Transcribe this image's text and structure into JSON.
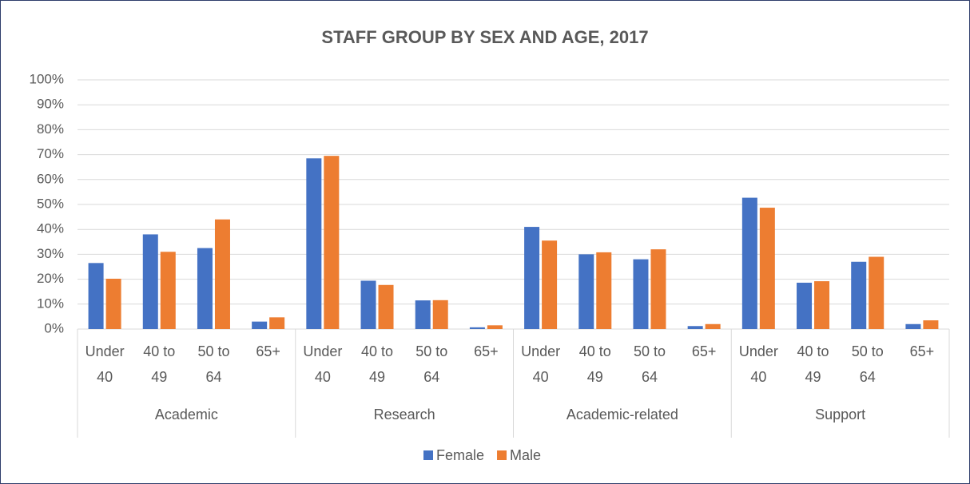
{
  "chart_data": {
    "type": "bar",
    "title": "STAFF GROUP BY SEX AND AGE, 2017",
    "groups": [
      {
        "name": "Academic",
        "categories": [
          "Under 40",
          "40 to 49",
          "50 to 64",
          "65+"
        ]
      },
      {
        "name": "Research",
        "categories": [
          "Under 40",
          "40 to 49",
          "50 to 64",
          "65+"
        ]
      },
      {
        "name": "Academic-related",
        "categories": [
          "Under 40",
          "40 to 49",
          "50 to 64",
          "65+"
        ]
      },
      {
        "name": "Support",
        "categories": [
          "Under 40",
          "40 to 49",
          "50 to 64",
          "65+"
        ]
      }
    ],
    "series": [
      {
        "name": "Female",
        "color": "#4472c4",
        "values": [
          26.5,
          38,
          32.5,
          3,
          68.5,
          19.4,
          11.5,
          0.7,
          41,
          30,
          28,
          1.2,
          52.7,
          18.6,
          27,
          2
        ]
      },
      {
        "name": "Male",
        "color": "#ed7d31",
        "values": [
          20.2,
          31,
          44,
          4.7,
          69.5,
          17.7,
          11.6,
          1.5,
          35.5,
          30.8,
          32,
          2,
          48.7,
          19.2,
          29,
          3.5
        ]
      }
    ],
    "ylim": [
      0,
      100
    ],
    "yticks": [
      {
        "value": 0,
        "label": "0%"
      },
      {
        "value": 10,
        "label": "10%"
      },
      {
        "value": 20,
        "label": "20%"
      },
      {
        "value": 30,
        "label": "30%"
      },
      {
        "value": 40,
        "label": "40%"
      },
      {
        "value": 50,
        "label": "50%"
      },
      {
        "value": 60,
        "label": "60%"
      },
      {
        "value": 70,
        "label": "70%"
      },
      {
        "value": 80,
        "label": "80%"
      },
      {
        "value": 90,
        "label": "90%"
      },
      {
        "value": 100,
        "label": "100%"
      }
    ],
    "grid": true,
    "legend": "bottom"
  }
}
